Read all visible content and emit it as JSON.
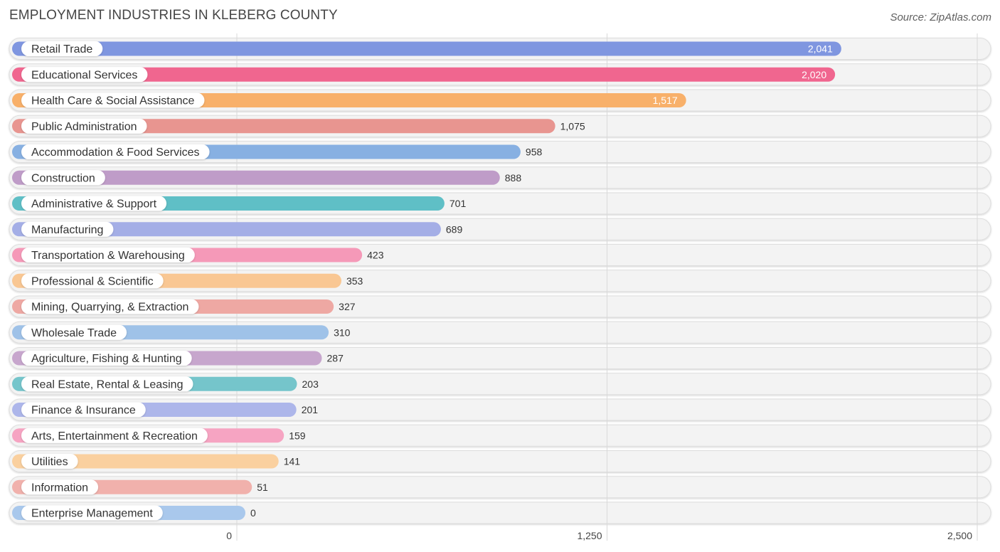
{
  "chart_data": {
    "type": "bar",
    "orientation": "horizontal",
    "title": "EMPLOYMENT INDUSTRIES IN KLEBERG COUNTY",
    "source": "Source: ZipAtlas.com",
    "xlabel": "",
    "ylabel": "",
    "xlim": [
      0,
      2500
    ],
    "ticks": [
      0,
      1250,
      2500
    ],
    "tick_labels": [
      "0",
      "1,250",
      "2,500"
    ],
    "grid": true,
    "categories": [
      "Retail Trade",
      "Educational Services",
      "Health Care & Social Assistance",
      "Public Administration",
      "Accommodation & Food Services",
      "Construction",
      "Administrative & Support",
      "Manufacturing",
      "Transportation & Warehousing",
      "Professional & Scientific",
      "Mining, Quarrying, & Extraction",
      "Wholesale Trade",
      "Agriculture, Fishing & Hunting",
      "Real Estate, Rental & Leasing",
      "Finance & Insurance",
      "Arts, Entertainment & Recreation",
      "Utilities",
      "Information",
      "Enterprise Management"
    ],
    "values": [
      2041,
      2020,
      1517,
      1075,
      958,
      888,
      701,
      689,
      423,
      353,
      327,
      310,
      287,
      203,
      201,
      159,
      141,
      51,
      0
    ],
    "value_labels": [
      "2,041",
      "2,020",
      "1,517",
      "1,075",
      "958",
      "888",
      "701",
      "689",
      "423",
      "353",
      "327",
      "310",
      "287",
      "203",
      "201",
      "159",
      "141",
      "51",
      "0"
    ],
    "colors": [
      "#7f96e0",
      "#f0668f",
      "#f8b06a",
      "#e89590",
      "#87b0e2",
      "#bf9cc8",
      "#5fbfc6",
      "#a4aee6",
      "#f599b8",
      "#f9c793",
      "#eea8a3",
      "#9fc2e8",
      "#c7a6cd",
      "#75c5cb",
      "#adb6ea",
      "#f6a4c2",
      "#fad09f",
      "#f1b1ac",
      "#a9c8ec"
    ]
  }
}
